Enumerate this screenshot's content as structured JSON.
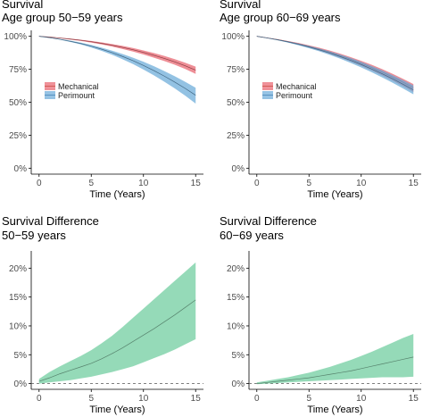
{
  "chart_data": [
    {
      "type": "area",
      "title": "Survival",
      "subtitle": "Age group 50−59 years",
      "xlabel": "Time (Years)",
      "ylabel": "",
      "xlim": [
        0,
        15
      ],
      "ylim": [
        0,
        1
      ],
      "x_ticks": [
        0,
        5,
        10,
        15
      ],
      "x_tick_labels": [
        "0",
        "5",
        "10",
        "15"
      ],
      "y_ticks": [
        0,
        0.25,
        0.5,
        0.75,
        1
      ],
      "y_tick_labels": [
        "0%",
        "25%",
        "50%",
        "75%",
        "100%"
      ],
      "legend_position": "left",
      "grid": false,
      "series": [
        {
          "name": "Mechanical",
          "color": "#e8636d",
          "x": [
            0,
            1,
            2,
            3,
            4,
            5,
            6,
            7,
            8,
            9,
            10,
            11,
            12,
            13,
            14,
            15
          ],
          "lower": [
            1.0,
            0.993,
            0.985,
            0.975,
            0.965,
            0.952,
            0.938,
            0.922,
            0.904,
            0.884,
            0.862,
            0.838,
            0.812,
            0.784,
            0.752,
            0.715
          ],
          "mid": [
            1.0,
            0.994,
            0.987,
            0.979,
            0.97,
            0.959,
            0.946,
            0.932,
            0.916,
            0.898,
            0.878,
            0.856,
            0.832,
            0.806,
            0.776,
            0.743
          ],
          "upper": [
            1.0,
            0.995,
            0.989,
            0.982,
            0.974,
            0.965,
            0.954,
            0.941,
            0.927,
            0.911,
            0.893,
            0.873,
            0.851,
            0.827,
            0.8,
            0.77
          ]
        },
        {
          "name": "Perimount",
          "color": "#6aaad8",
          "x": [
            0,
            1,
            2,
            3,
            4,
            5,
            6,
            7,
            8,
            9,
            10,
            11,
            12,
            13,
            14,
            15
          ],
          "lower": [
            1.0,
            0.988,
            0.974,
            0.957,
            0.938,
            0.915,
            0.889,
            0.86,
            0.826,
            0.789,
            0.748,
            0.704,
            0.656,
            0.605,
            0.55,
            0.49
          ],
          "mid": [
            1.0,
            0.99,
            0.977,
            0.962,
            0.945,
            0.925,
            0.902,
            0.876,
            0.847,
            0.815,
            0.779,
            0.74,
            0.698,
            0.653,
            0.605,
            0.553
          ],
          "upper": [
            1.0,
            0.991,
            0.98,
            0.967,
            0.952,
            0.934,
            0.914,
            0.891,
            0.866,
            0.838,
            0.807,
            0.773,
            0.736,
            0.697,
            0.655,
            0.61
          ]
        }
      ]
    },
    {
      "type": "area",
      "title": "Survival",
      "subtitle": "Age group 60−69 years",
      "xlabel": "Time (Years)",
      "ylabel": "",
      "xlim": [
        0,
        15
      ],
      "ylim": [
        0,
        1
      ],
      "x_ticks": [
        0,
        5,
        10,
        15
      ],
      "x_tick_labels": [
        "0",
        "5",
        "10",
        "15"
      ],
      "y_ticks": [
        0,
        0.25,
        0.5,
        0.75,
        1
      ],
      "y_tick_labels": [
        "0%",
        "25%",
        "50%",
        "75%",
        "100%"
      ],
      "legend_position": "left",
      "grid": false,
      "series": [
        {
          "name": "Mechanical",
          "color": "#e8636d",
          "x": [
            0,
            1,
            2,
            3,
            4,
            5,
            6,
            7,
            8,
            9,
            10,
            11,
            12,
            13,
            14,
            15
          ],
          "lower": [
            1.0,
            0.987,
            0.972,
            0.955,
            0.936,
            0.915,
            0.892,
            0.866,
            0.838,
            0.808,
            0.775,
            0.74,
            0.703,
            0.664,
            0.622,
            0.578
          ],
          "mid": [
            1.0,
            0.988,
            0.975,
            0.96,
            0.943,
            0.924,
            0.903,
            0.88,
            0.854,
            0.826,
            0.796,
            0.764,
            0.729,
            0.692,
            0.652,
            0.61
          ],
          "upper": [
            1.0,
            0.989,
            0.977,
            0.964,
            0.949,
            0.932,
            0.913,
            0.892,
            0.868,
            0.842,
            0.814,
            0.784,
            0.751,
            0.716,
            0.678,
            0.638
          ]
        },
        {
          "name": "Perimount",
          "color": "#6aaad8",
          "x": [
            0,
            1,
            2,
            3,
            4,
            5,
            6,
            7,
            8,
            9,
            10,
            11,
            12,
            13,
            14,
            15
          ],
          "lower": [
            1.0,
            0.986,
            0.97,
            0.952,
            0.932,
            0.91,
            0.886,
            0.859,
            0.83,
            0.798,
            0.764,
            0.728,
            0.689,
            0.648,
            0.605,
            0.56
          ],
          "mid": [
            1.0,
            0.987,
            0.973,
            0.957,
            0.939,
            0.919,
            0.897,
            0.873,
            0.846,
            0.817,
            0.786,
            0.752,
            0.716,
            0.678,
            0.637,
            0.594
          ],
          "upper": [
            1.0,
            0.988,
            0.975,
            0.961,
            0.945,
            0.927,
            0.907,
            0.885,
            0.861,
            0.835,
            0.806,
            0.775,
            0.742,
            0.706,
            0.668,
            0.628
          ]
        }
      ]
    },
    {
      "type": "area",
      "title": "Survival Difference",
      "subtitle": "50−59 years",
      "xlabel": "Time (Years)",
      "ylabel": "",
      "xlim": [
        0,
        15
      ],
      "ylim": [
        0,
        0.22
      ],
      "x_ticks": [
        0,
        5,
        10,
        15
      ],
      "x_tick_labels": [
        "0",
        "5",
        "10",
        "15"
      ],
      "y_ticks": [
        0,
        0.05,
        0.1,
        0.15,
        0.2
      ],
      "y_tick_labels": [
        "0%",
        "5%",
        "10%",
        "15%",
        "20%"
      ],
      "reference_line": 0,
      "grid": false,
      "series": [
        {
          "name": "",
          "color": "#8fd8b4",
          "x": [
            0,
            1,
            2,
            3,
            4,
            5,
            6,
            7,
            8,
            9,
            10,
            11,
            12,
            13,
            14,
            15
          ],
          "lower": [
            0.0,
            0.002,
            0.004,
            0.006,
            0.009,
            0.012,
            0.016,
            0.02,
            0.025,
            0.03,
            0.037,
            0.044,
            0.051,
            0.059,
            0.068,
            0.077
          ],
          "mid": [
            0.004,
            0.01,
            0.017,
            0.023,
            0.029,
            0.035,
            0.043,
            0.052,
            0.062,
            0.073,
            0.084,
            0.095,
            0.107,
            0.119,
            0.132,
            0.145
          ],
          "upper": [
            0.008,
            0.02,
            0.03,
            0.039,
            0.048,
            0.058,
            0.07,
            0.083,
            0.098,
            0.114,
            0.13,
            0.146,
            0.162,
            0.178,
            0.194,
            0.21
          ]
        }
      ]
    },
    {
      "type": "area",
      "title": "Survival Difference",
      "subtitle": "60−69 years",
      "xlabel": "Time (Years)",
      "ylabel": "",
      "xlim": [
        0,
        15
      ],
      "ylim": [
        0,
        0.22
      ],
      "x_ticks": [
        0,
        5,
        10,
        15
      ],
      "x_tick_labels": [
        "0",
        "5",
        "10",
        "15"
      ],
      "y_ticks": [
        0,
        0.05,
        0.1,
        0.15,
        0.2
      ],
      "y_tick_labels": [
        "0%",
        "5%",
        "10%",
        "15%",
        "20%"
      ],
      "reference_line": 0,
      "grid": false,
      "series": [
        {
          "name": "",
          "color": "#8fd8b4",
          "x": [
            0,
            1,
            2,
            3,
            4,
            5,
            6,
            7,
            8,
            9,
            10,
            11,
            12,
            13,
            14,
            15
          ],
          "lower": [
            -0.001,
            0.0,
            0.001,
            0.002,
            0.003,
            0.004,
            0.005,
            0.006,
            0.007,
            0.008,
            0.009,
            0.01,
            0.011,
            0.011,
            0.011,
            0.012
          ],
          "mid": [
            0.0,
            0.002,
            0.004,
            0.006,
            0.008,
            0.01,
            0.013,
            0.016,
            0.019,
            0.022,
            0.026,
            0.03,
            0.034,
            0.038,
            0.042,
            0.046
          ],
          "upper": [
            0.002,
            0.005,
            0.008,
            0.011,
            0.015,
            0.019,
            0.024,
            0.029,
            0.035,
            0.041,
            0.048,
            0.055,
            0.063,
            0.071,
            0.079,
            0.086
          ]
        }
      ]
    }
  ]
}
